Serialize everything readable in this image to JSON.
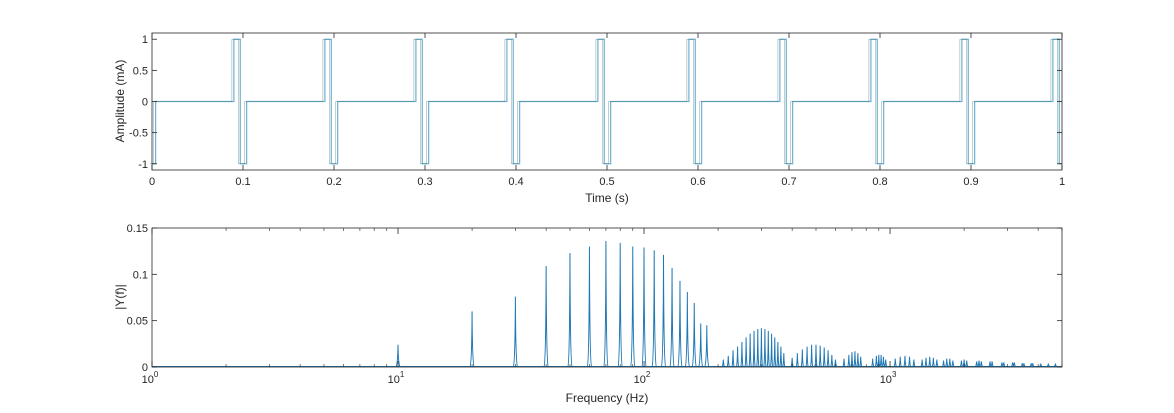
{
  "chart_data": [
    {
      "type": "line",
      "title": "",
      "xlabel": "Time (s)",
      "ylabel": "Amplitude (mA)",
      "xlim": [
        0,
        1
      ],
      "ylim": [
        -1.1,
        1.1
      ],
      "x_ticks": [
        "0",
        "0.1",
        "0.2",
        "0.3",
        "0.4",
        "0.5",
        "0.6",
        "0.7",
        "0.8",
        "0.9",
        "1"
      ],
      "y_ticks": [
        "-1",
        "-0.5",
        "0",
        "0.5",
        "1"
      ],
      "grid": false,
      "line_color": "#6FB1CC",
      "series": [
        {
          "signal": "biphasic pulse train",
          "period_s": 0.1,
          "pulse_start_offset_s": -0.01,
          "pulse_width_each_phase_s": 0.007,
          "first_phase_amplitude": 1,
          "second_phase_amplitude": -1,
          "baseline": 0
        }
      ]
    },
    {
      "type": "line",
      "title": "",
      "xlabel": "Frequency (Hz)",
      "ylabel": "|Y(f)|",
      "xscale": "log",
      "xlim": [
        1,
        5000
      ],
      "ylim": [
        0,
        0.15
      ],
      "x_ticks": [
        {
          "base": "10",
          "exp": "0"
        },
        {
          "base": "10",
          "exp": "1"
        },
        {
          "base": "10",
          "exp": "2"
        },
        {
          "base": "10",
          "exp": "3"
        }
      ],
      "y_ticks": [
        "0",
        "0.05",
        "0.1",
        "0.15"
      ],
      "grid": false,
      "line_color": "#1F77B4",
      "harmonic_spacing_hz": 10,
      "series": [
        {
          "name": "",
          "x": [
            10,
            20,
            30,
            40,
            50,
            60,
            70,
            80,
            90,
            100,
            110,
            120,
            130,
            140,
            150,
            160,
            170,
            180,
            210,
            220,
            230,
            240,
            250,
            260,
            270,
            280,
            290,
            300,
            310,
            320,
            330,
            340,
            350,
            360,
            370,
            400,
            420,
            440,
            460,
            480,
            500,
            520,
            540,
            560,
            580,
            600,
            650,
            680,
            700,
            720,
            740,
            760,
            850,
            880,
            900,
            920,
            940,
            960,
            1050,
            1100,
            1150,
            1200,
            1250,
            1350,
            1400,
            1450,
            1500,
            1550,
            1650,
            1700,
            1750,
            1800,
            1950,
            2000,
            2050,
            2250,
            2300,
            2350,
            2550,
            2600,
            2850,
            2900,
            3150,
            3200,
            3450,
            3500,
            3750,
            3800,
            4100,
            4400,
            4700
          ],
          "y": [
            0.024,
            0.06,
            0.076,
            0.109,
            0.123,
            0.13,
            0.136,
            0.134,
            0.13,
            0.129,
            0.126,
            0.121,
            0.107,
            0.093,
            0.081,
            0.069,
            0.047,
            0.045,
            0.008,
            0.012,
            0.018,
            0.022,
            0.027,
            0.032,
            0.036,
            0.039,
            0.041,
            0.042,
            0.041,
            0.039,
            0.036,
            0.032,
            0.027,
            0.022,
            0.015,
            0.01,
            0.015,
            0.019,
            0.022,
            0.024,
            0.024,
            0.023,
            0.021,
            0.018,
            0.013,
            0.008,
            0.009,
            0.013,
            0.016,
            0.017,
            0.015,
            0.011,
            0.009,
            0.012,
            0.013,
            0.013,
            0.011,
            0.008,
            0.009,
            0.011,
            0.012,
            0.011,
            0.008,
            0.008,
            0.01,
            0.011,
            0.01,
            0.008,
            0.007,
            0.009,
            0.009,
            0.007,
            0.007,
            0.008,
            0.007,
            0.006,
            0.007,
            0.006,
            0.006,
            0.006,
            0.005,
            0.005,
            0.005,
            0.005,
            0.004,
            0.004,
            0.004,
            0.004,
            0.003,
            0.003,
            0.003
          ]
        }
      ]
    }
  ]
}
